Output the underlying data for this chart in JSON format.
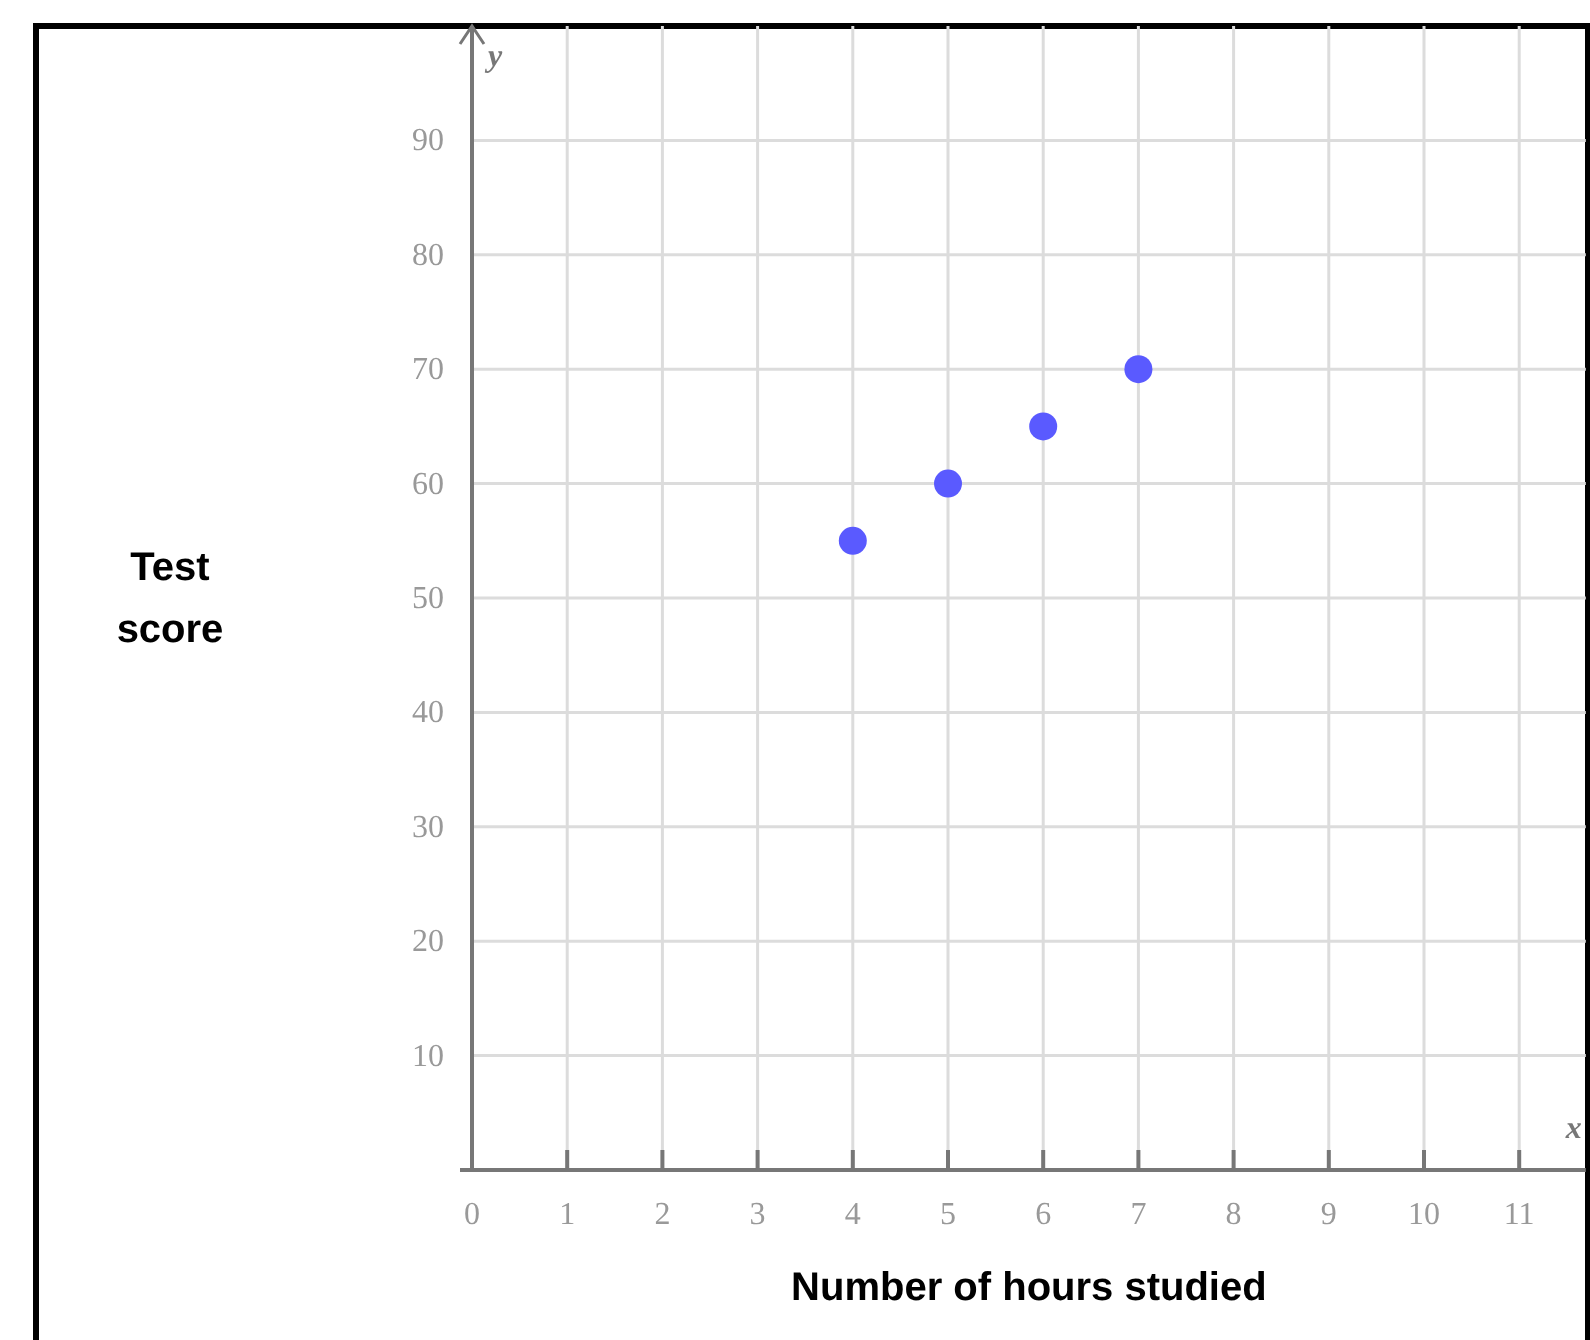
{
  "chart_data": {
    "type": "scatter",
    "xlabel": "Number of hours studied",
    "ylabel": "Test score",
    "annotations": [
      "x",
      "y"
    ],
    "x": [
      4,
      5,
      6,
      7
    ],
    "values": [
      55,
      60,
      65,
      70
    ],
    "color": "#5a5aff",
    "marker": "circle",
    "xlim": [
      0,
      11.7
    ],
    "ylim": [
      0,
      100
    ],
    "xticks": [
      0,
      1,
      2,
      3,
      4,
      5,
      6,
      7,
      8,
      9,
      10,
      11
    ],
    "yticks": [
      10,
      20,
      30,
      40,
      50,
      60,
      70,
      80,
      90
    ],
    "grid": true
  }
}
